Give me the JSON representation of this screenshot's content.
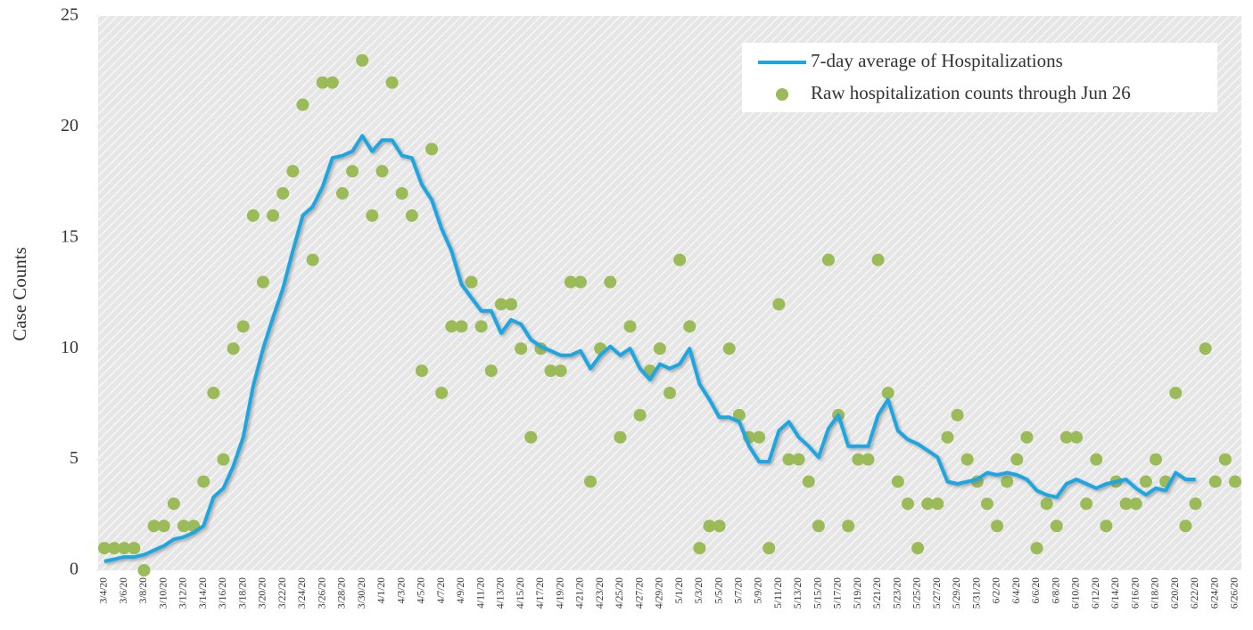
{
  "chart_data": {
    "type": "line",
    "y_label": "Case Counts",
    "ylim": [
      0,
      25
    ],
    "yticks": [
      0,
      5,
      10,
      15,
      20,
      25
    ],
    "legend": "upper right",
    "categories": [
      "3/4/20",
      null,
      "3/6/20",
      null,
      "3/8/20",
      null,
      "3/10/20",
      null,
      "3/12/20",
      null,
      "3/14/20",
      null,
      "3/16/20",
      null,
      "3/18/20",
      null,
      "3/20/20",
      null,
      "3/22/20",
      null,
      "3/24/20",
      null,
      "3/26/20",
      null,
      "3/28/20",
      null,
      "3/30/20",
      null,
      "4/1/20",
      null,
      "4/3/20",
      null,
      "4/5/20",
      null,
      "4/7/20",
      null,
      "4/9/20",
      null,
      "4/11/20",
      null,
      "4/13/20",
      null,
      "4/15/20",
      null,
      "4/17/20",
      null,
      "4/19/20",
      null,
      "4/21/20",
      null,
      "4/23/20",
      null,
      "4/25/20",
      null,
      "4/27/20",
      null,
      "4/29/20",
      null,
      "5/1/20",
      null,
      "5/3/20",
      null,
      "5/5/20",
      null,
      "5/7/20",
      null,
      "5/9/20",
      null,
      "5/11/20",
      null,
      "5/13/20",
      null,
      "5/15/20",
      null,
      "5/17/20",
      null,
      "5/19/20",
      null,
      "5/21/20",
      null,
      "5/23/20",
      null,
      "5/25/20",
      null,
      "5/27/20",
      null,
      "5/29/20",
      null,
      "5/31/20",
      null,
      "6/2/20",
      null,
      "6/4/20",
      null,
      "6/6/20",
      null,
      "6/8/20",
      null,
      "6/10/20",
      null,
      "6/12/20",
      null,
      "6/14/20",
      null,
      "6/16/20",
      null,
      "6/18/20",
      null,
      "6/20/20",
      null,
      "6/22/20",
      null,
      "6/24/20",
      null,
      "6/26/20"
    ],
    "series": [
      {
        "name": "7-day average of Hospitalizations",
        "color": "#1ba6e2",
        "type": "line",
        "values": [
          0.4,
          0.5,
          0.6,
          0.6,
          0.7,
          0.9,
          1.1,
          1.4,
          1.5,
          1.7,
          2.0,
          3.3,
          3.7,
          4.7,
          6.0,
          8.3,
          10.0,
          11.4,
          12.7,
          14.4,
          16.0,
          16.4,
          17.3,
          18.6,
          18.7,
          18.9,
          19.6,
          18.9,
          19.4,
          19.4,
          18.7,
          18.6,
          17.4,
          16.7,
          15.4,
          14.4,
          12.9,
          12.3,
          11.7,
          11.7,
          10.7,
          11.3,
          11.1,
          10.4,
          10.1,
          9.9,
          9.7,
          9.7,
          9.9,
          9.1,
          9.7,
          10.1,
          9.7,
          10.0,
          9.1,
          8.6,
          9.3,
          9.1,
          9.3,
          10.0,
          8.4,
          7.7,
          6.9,
          6.9,
          6.7,
          5.6,
          4.9,
          4.9,
          6.3,
          6.7,
          6.0,
          5.6,
          5.1,
          6.4,
          7.0,
          5.6,
          5.6,
          5.6,
          7.0,
          7.7,
          6.3,
          5.9,
          5.7,
          5.4,
          5.1,
          4.0,
          3.9,
          4.0,
          4.1,
          4.4,
          4.3,
          4.4,
          4.3,
          4.1,
          3.6,
          3.4,
          3.3,
          3.9,
          4.1,
          3.9,
          3.7,
          3.9,
          4.0,
          4.1,
          3.7,
          3.4,
          3.7,
          3.6,
          4.4,
          4.1,
          4.1,
          null,
          null,
          null,
          null
        ]
      },
      {
        "name": "Raw hospitalization counts through Jun 26",
        "color": "#9bbb59",
        "type": "scatter",
        "values": [
          1,
          1,
          1,
          1,
          0,
          2,
          2,
          3,
          2,
          2,
          4,
          8,
          5,
          10,
          11,
          16,
          13,
          16,
          17,
          18,
          21,
          14,
          22,
          22,
          17,
          18,
          23,
          16,
          18,
          22,
          17,
          16,
          9,
          19,
          8,
          11,
          11,
          13,
          11,
          9,
          12,
          12,
          10,
          6,
          10,
          9,
          9,
          13,
          13,
          4,
          10,
          13,
          6,
          11,
          7,
          9,
          10,
          8,
          14,
          11,
          1,
          2,
          2,
          10,
          7,
          6,
          6,
          1,
          12,
          5,
          5,
          4,
          2,
          14,
          7,
          2,
          5,
          5,
          14,
          8,
          4,
          3,
          1,
          3,
          3,
          6,
          7,
          5,
          4,
          3,
          2,
          4,
          5,
          6,
          1,
          3,
          2,
          6,
          6,
          3,
          5,
          2,
          4,
          3,
          3,
          4,
          5,
          4,
          8,
          2,
          3,
          10,
          4,
          5,
          4
        ]
      }
    ]
  }
}
